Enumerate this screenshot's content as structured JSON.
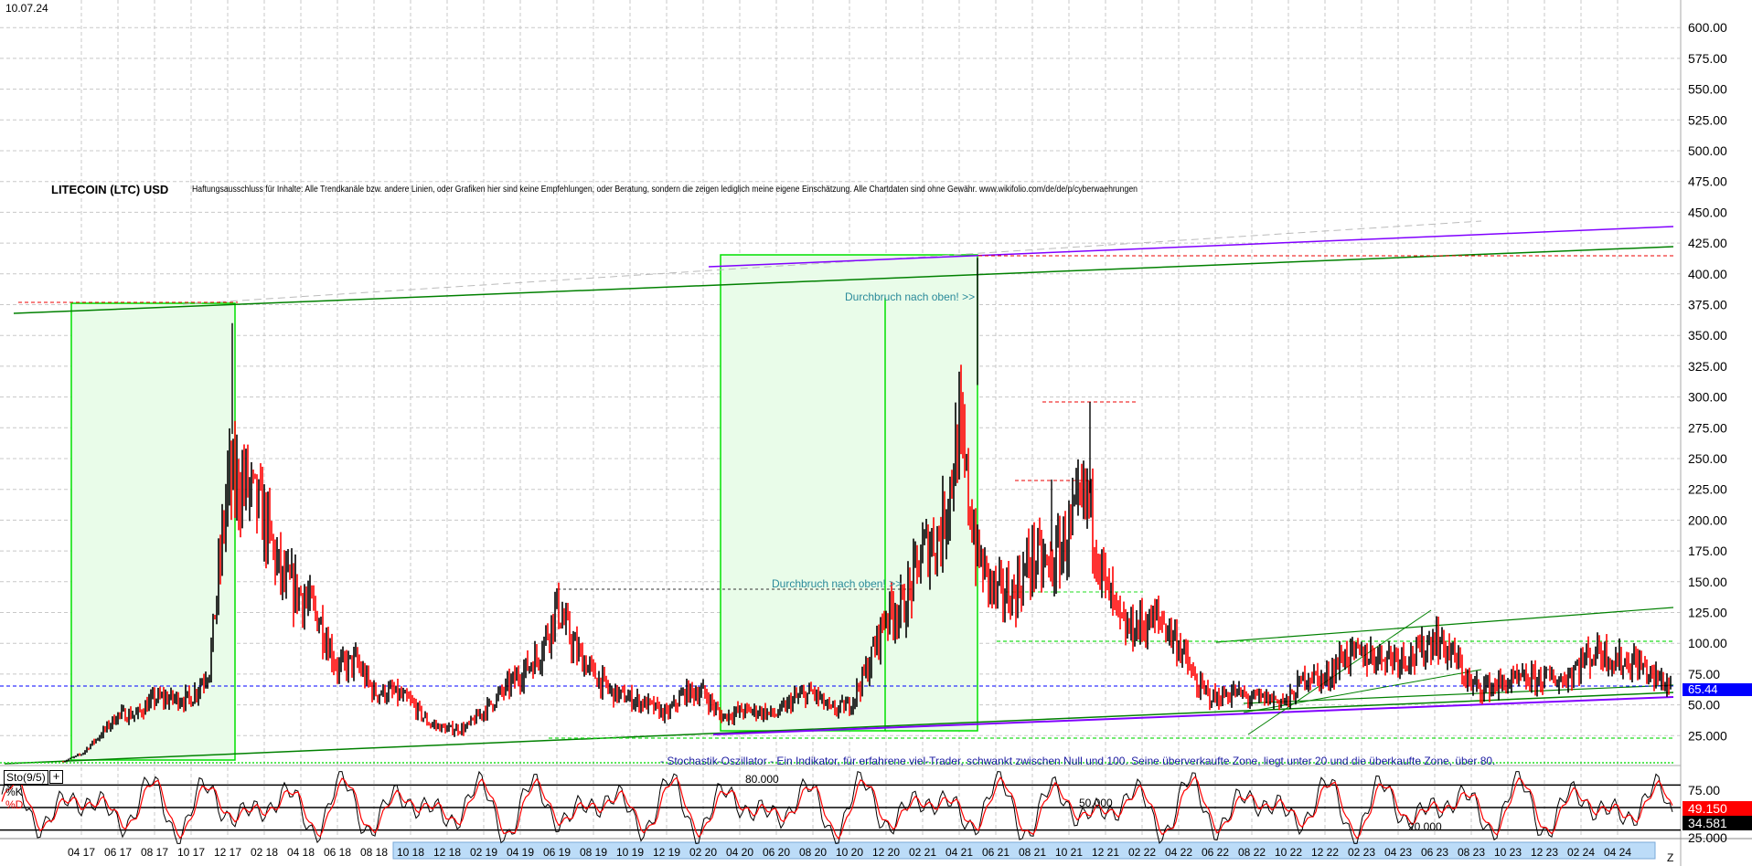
{
  "header": {
    "date": "10.07.24",
    "title": "LITECOIN (LTC) USD",
    "disclaimer": "Haftungsausschluss für Inhalte: Alle Trendkanäle bzw. andere Linien, oder Grafiken hier sind keine Empfehlungen, oder Beratung, sondern die zeigen lediglich meine eigene Einschätzung. Alle Chartdaten sind ohne Gewähr.  www.wikifolio.com/de/de/p/cyberwaehrungen"
  },
  "annotations": {
    "breakout1": "Durchbruch nach oben! >>",
    "breakout2": "Durchbruch nach oben! >>",
    "stoch_note": "- Stochastik-Oszillator - Ein Indikator, für erfahrene viel-Trader, schwankt zwischen Null und 100. Seine überverkaufte Zone, liegt unter 20 und die überkaufte Zone, über 80."
  },
  "indicator": {
    "name": "Sto(9/5)",
    "k_label": "%K",
    "d_label": "%D",
    "k_value": "49.150",
    "d_value": "34.581",
    "levels": [
      "80.000",
      "50.000",
      "20.000"
    ],
    "axis_ticks": [
      "75.00",
      "25.000"
    ]
  },
  "current_price": "65.44",
  "zoom_button": "Z",
  "colors": {
    "up": "#000000",
    "down": "#ff0000",
    "box": "#00e000",
    "trend": "#008000",
    "channel": "#8000ff",
    "price_line": "#0000ff"
  },
  "chart_data": {
    "type": "line",
    "title": "LITECOIN (LTC) USD",
    "ylim": [
      0,
      600
    ],
    "yticks": [
      "600.00",
      "575.00",
      "550.00",
      "525.00",
      "500.00",
      "475.00",
      "450.00",
      "425.00",
      "400.00",
      "375.00",
      "350.00",
      "325.00",
      "300.00",
      "275.00",
      "250.00",
      "225.00",
      "200.00",
      "175.00",
      "150.00",
      "125.00",
      "100.00",
      "75.00",
      "50.00",
      "25.000"
    ],
    "xticks": [
      "04 17",
      "06 17",
      "08 17",
      "10 17",
      "12 17",
      "02 18",
      "04 18",
      "06 18",
      "08 18",
      "10 18",
      "12 18",
      "02 19",
      "04 19",
      "06 19",
      "08 19",
      "10 19",
      "12 19",
      "02 20",
      "04 20",
      "06 20",
      "08 20",
      "10 20",
      "12 20",
      "02 21",
      "04 21",
      "06 21",
      "08 21",
      "10 21",
      "12 21",
      "02 22",
      "04 22",
      "06 22",
      "08 22",
      "10 22",
      "12 22",
      "02 23",
      "04 23",
      "06 23",
      "08 23",
      "10 23",
      "12 23",
      "02 24",
      "04 24"
    ],
    "x_start": "2017-03",
    "monthly_close": [
      4,
      10,
      25,
      42,
      42,
      55,
      55,
      55,
      80,
      230,
      230,
      200,
      150,
      140,
      120,
      80,
      85,
      60,
      60,
      52,
      35,
      30,
      31,
      45,
      60,
      75,
      90,
      130,
      95,
      75,
      60,
      55,
      50,
      42,
      60,
      60,
      40,
      45,
      45,
      42,
      55,
      60,
      45,
      50,
      80,
      125,
      130,
      175,
      190,
      270,
      170,
      140,
      140,
      170,
      160,
      190,
      220,
      145,
      110,
      115,
      120,
      100,
      65,
      55,
      60,
      55,
      55,
      53,
      75,
      70,
      90,
      90,
      90,
      90,
      90,
      105,
      90,
      65,
      65,
      68,
      70,
      72,
      70,
      85,
      95,
      85,
      85,
      72,
      65.44
    ],
    "highs_marked": [
      360,
      413,
      296,
      233
    ],
    "grid": true
  }
}
